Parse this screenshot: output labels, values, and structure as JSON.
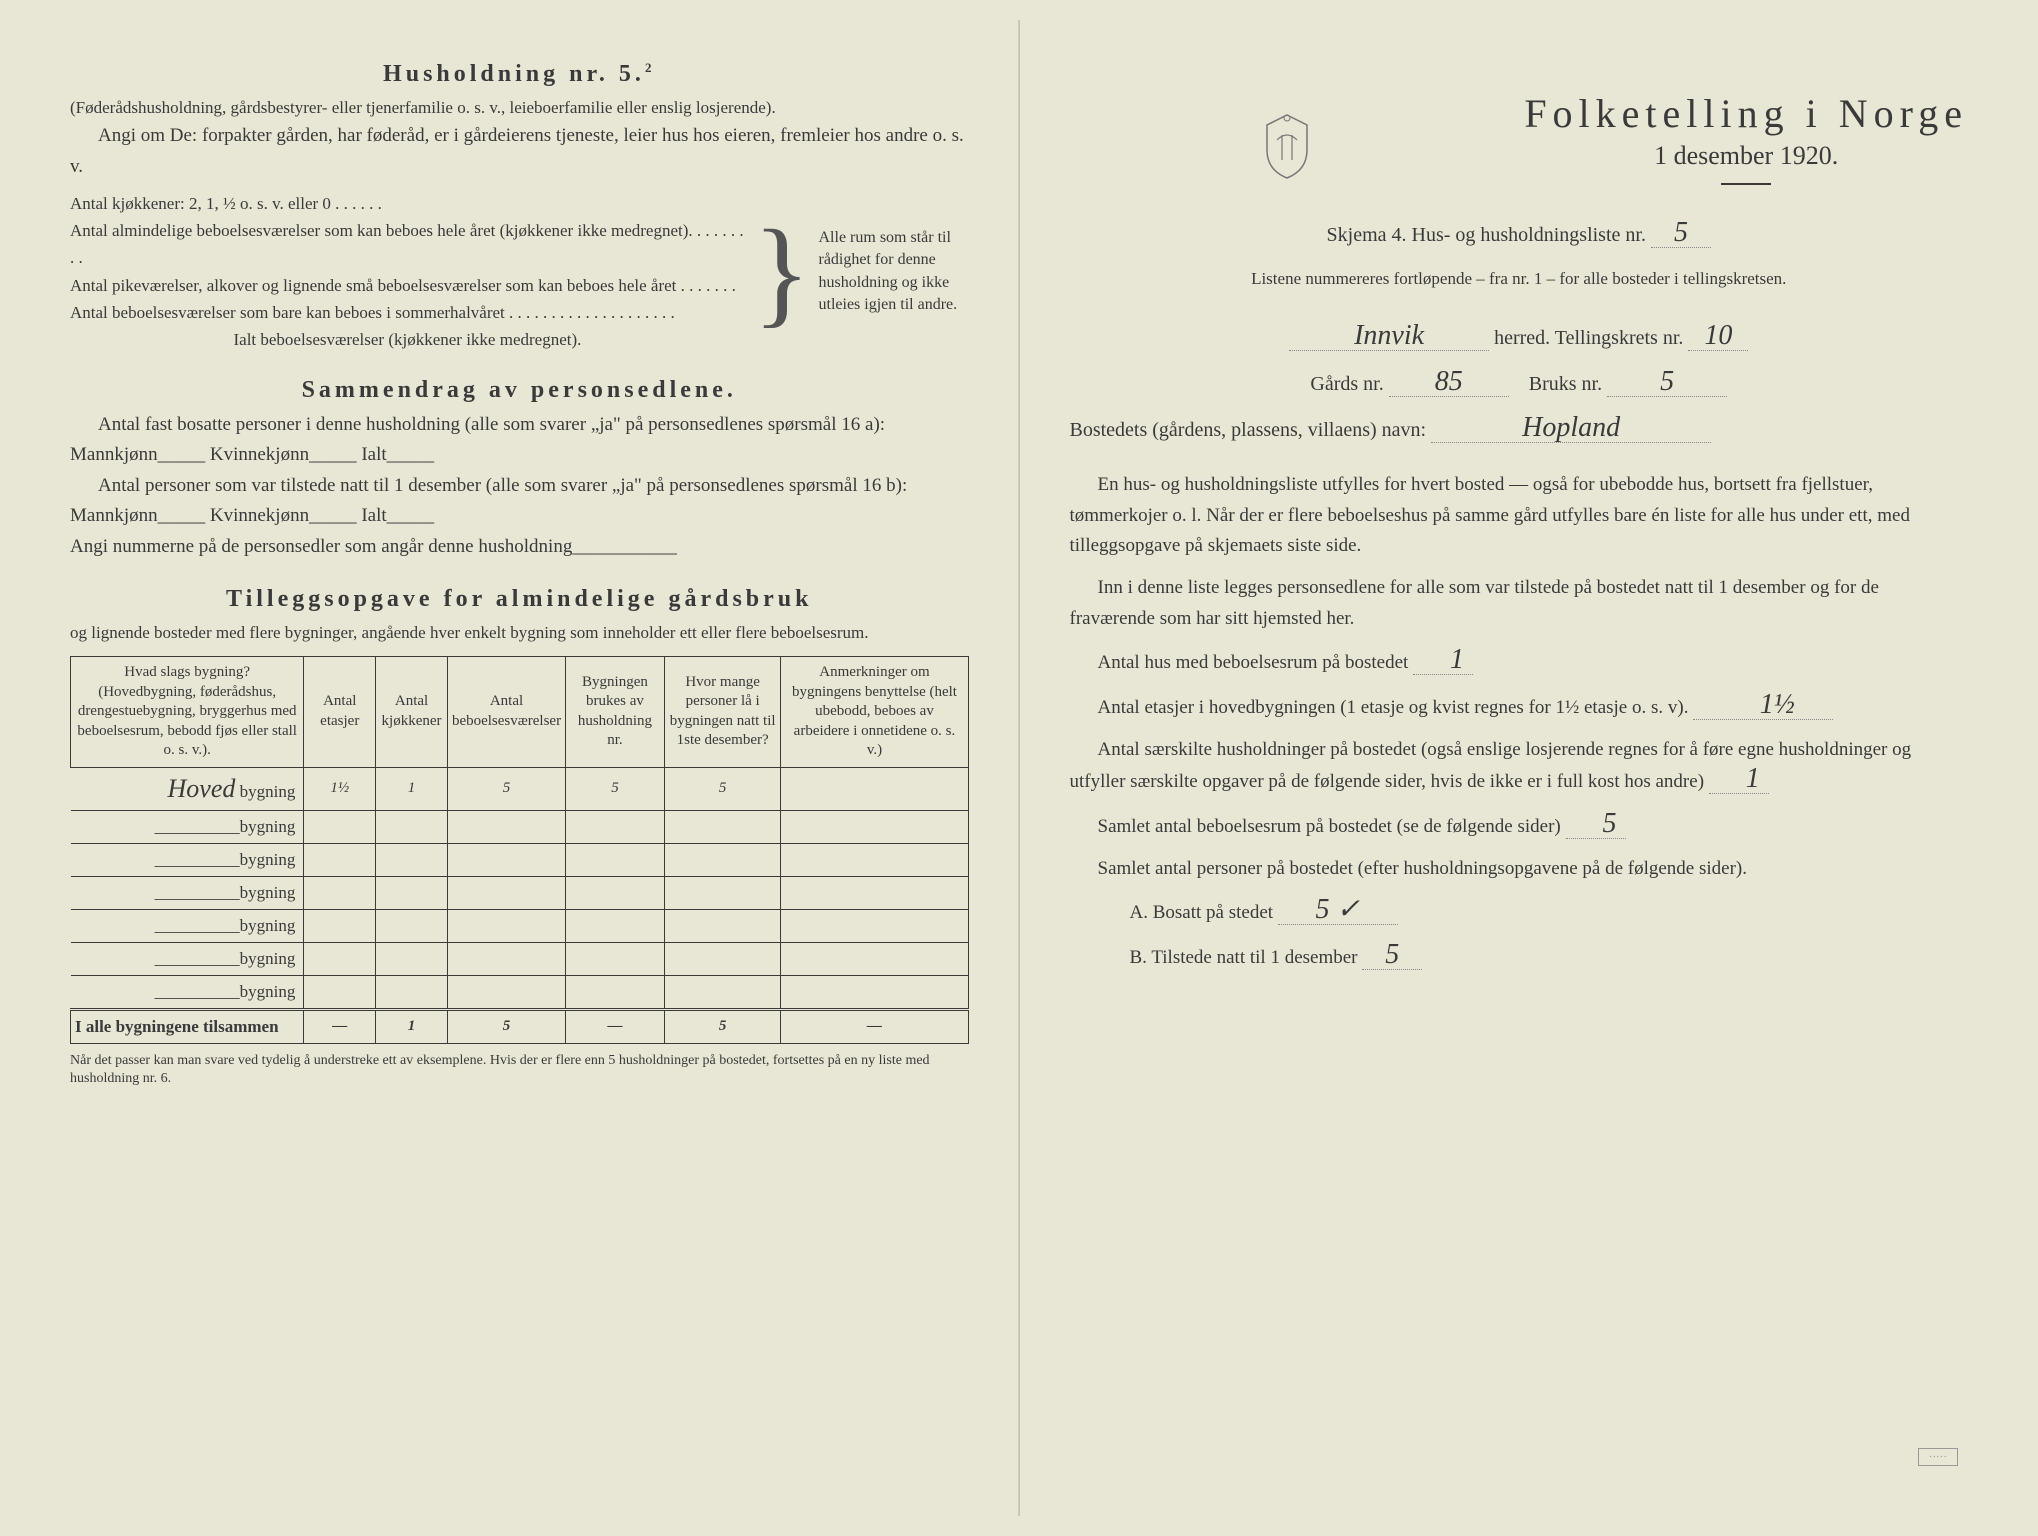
{
  "left": {
    "heading": "Husholdning nr. 5.",
    "heading_sup": "2",
    "sub1": "(Føderådshusholdning, gårdsbestyrer- eller tjenerfamilie o. s. v., leieboerfamilie eller enslig losjerende).",
    "sub2": "Angi om De: forpakter gården, har føderåd, er i gårdeierens tjeneste, leier hus hos eieren, fremleier hos andre o. s. v.",
    "kj_line": "Antal kjøkkener: 2, 1, ½ o. s. v. eller 0 . . . . . .",
    "rooms": [
      "Antal almindelige beboelsesværelser som kan beboes hele året (kjøkkener ikke medregnet). . . . . . . . .",
      "Antal pikeværelser, alkover og lignende små beboelsesværelser som kan beboes hele året . . . . . . .",
      "Antal beboelsesværelser som bare kan beboes i sommerhalvåret . . . . . . . . . . . . . . . . . . . .",
      "Ialt beboelsesværelser (kjøkkener ikke medregnet)."
    ],
    "brace_text": "Alle rum som står til rådighet for denne husholdning og ikke utleies igjen til andre.",
    "sammen_heading": "Sammendrag av personsedlene.",
    "sammen_p1": "Antal fast bosatte personer i denne husholdning (alle som svarer „ja\" på personsedlenes spørsmål 16 a): Mannkjønn_____ Kvinnekjønn_____ Ialt_____",
    "sammen_p2": "Antal personer som var tilstede natt til 1 desember (alle som svarer „ja\" på personsedlenes spørsmål 16 b): Mannkjønn_____ Kvinnekjønn_____ Ialt_____",
    "sammen_p3": "Angi nummerne på de personsedler som angår denne husholdning___________",
    "tillegg_heading": "Tilleggsopgave for almindelige gårdsbruk",
    "tillegg_sub": "og lignende bosteder med flere bygninger, angående hver enkelt bygning som inneholder ett eller flere beboelsesrum.",
    "table": {
      "headers": [
        "Hvad slags bygning?\n(Hovedbygning, føderådshus, drengestuebygning, bryggerhus med beboelsesrum, bebodd fjøs eller stall o. s. v.).",
        "Antal etasjer",
        "Antal kjøkkener",
        "Antal beboelsesværelser",
        "Bygningen brukes av husholdning nr.",
        "Hvor mange personer lå i bygningen natt til 1ste desember?",
        "Anmerkninger om bygningens benyttelse (helt ubebodd, beboes av arbeidere i onnetidene o. s. v.)"
      ],
      "rows": [
        {
          "label_hand": "Hoved",
          "label": "bygning",
          "cells": [
            "1½",
            "1",
            "5",
            "5",
            "5",
            ""
          ]
        },
        {
          "label_hand": "",
          "label": "bygning",
          "cells": [
            "",
            "",
            "",
            "",
            "",
            ""
          ]
        },
        {
          "label_hand": "",
          "label": "bygning",
          "cells": [
            "",
            "",
            "",
            "",
            "",
            ""
          ]
        },
        {
          "label_hand": "",
          "label": "bygning",
          "cells": [
            "",
            "",
            "",
            "",
            "",
            ""
          ]
        },
        {
          "label_hand": "",
          "label": "bygning",
          "cells": [
            "",
            "",
            "",
            "",
            "",
            ""
          ]
        },
        {
          "label_hand": "",
          "label": "bygning",
          "cells": [
            "",
            "",
            "",
            "",
            "",
            ""
          ]
        },
        {
          "label_hand": "",
          "label": "bygning",
          "cells": [
            "",
            "",
            "",
            "",
            "",
            ""
          ]
        }
      ],
      "total_label": "I alle bygningene tilsammen",
      "total_cells": [
        "—",
        "1",
        "5",
        "—",
        "5",
        "—"
      ]
    },
    "footnote": "Når det passer kan man svare ved tydelig å understreke ett av eksemplene.\nHvis der er flere enn 5 husholdninger på bostedet, fortsettes på en ny liste med husholdning nr. 6."
  },
  "right": {
    "title": "Folketelling i Norge",
    "date": "1 desember 1920.",
    "skjema_line": "Skjema 4.  Hus- og husholdningsliste nr.",
    "skjema_nr": "5",
    "listene": "Listene nummereres fortløpende – fra nr. 1 – for alle bosteder i tellingskretsen.",
    "herred_hand": "Innvik",
    "herred_label": "herred.  Tellingskrets nr.",
    "krets_nr": "10",
    "gard_label": "Gårds nr.",
    "gard_nr": "85",
    "bruks_label": "Bruks nr.",
    "bruks_nr": "5",
    "bosted_label": "Bostedets (gårdens, plassens, villaens) navn:",
    "bosted_hand": "Hopland",
    "para1": "En hus- og husholdningsliste utfylles for hvert bosted — også for ubebodde hus, bortsett fra fjellstuer, tømmerkojer o. l.  Når der er flere beboelseshus på samme gård utfylles bare én liste for alle hus under ett, med tilleggsopgave på skjemaets siste side.",
    "para2": "Inn i denne liste legges personsedlene for alle som var tilstede på bostedet natt til 1 desember og for de fraværende som har sitt hjemsted her.",
    "q1_label": "Antal hus med beboelsesrum på bostedet",
    "q1_val": "1",
    "q2_label_a": "Antal etasjer i hovedbygningen (1 etasje og kvist regnes for 1½ etasje o. s. v).",
    "q2_val": "1½",
    "q3_label": "Antal særskilte husholdninger på bostedet (også enslige losjerende regnes for å føre egne husholdninger og utfyller særskilte opgaver på de følgende sider, hvis de ikke er i full kost hos andre)",
    "q3_val": "1",
    "q4_label": "Samlet antal beboelsesrum på bostedet (se de følgende sider)",
    "q4_val": "5",
    "q5_label": "Samlet antal personer på bostedet (efter husholdningsopgavene på de følgende sider).",
    "q5a_label": "A.  Bosatt på stedet",
    "q5a_val": "5 ✓",
    "q5b_label": "B.  Tilstede natt til 1 desember",
    "q5b_val": "5"
  },
  "colors": {
    "paper": "#e8e6d4",
    "ink": "#3a3a3a",
    "hand": "#2a2a2a"
  }
}
